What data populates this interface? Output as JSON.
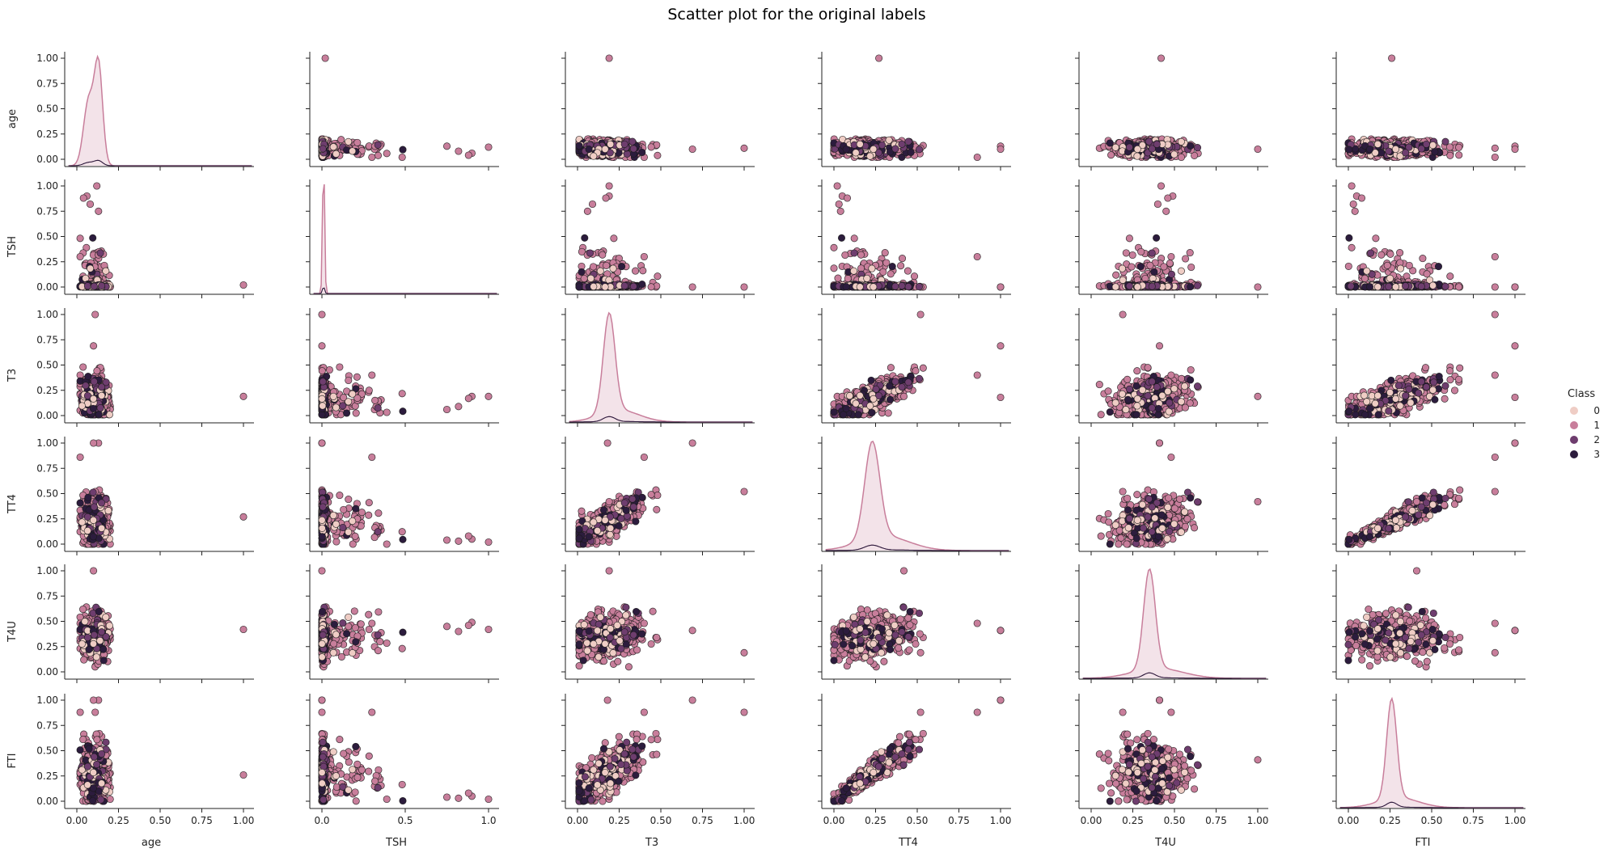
{
  "chart_data": {
    "type": "scatter",
    "title": "Scatter plot for the original labels",
    "variables": [
      "age",
      "TSH",
      "T3",
      "TT4",
      "T4U",
      "FTI"
    ],
    "axis_range": [
      0,
      1
    ],
    "y_ticks": [
      "0.00",
      "0.25",
      "0.50",
      "0.75",
      "1.00"
    ],
    "x_ticks_default": [
      "0.00",
      "0.25",
      "0.50",
      "0.75",
      "1.00"
    ],
    "x_ticks_tsh": [
      "0.0",
      "0.5",
      "1.0"
    ],
    "legend": {
      "title": "Class",
      "position": "right",
      "entries": [
        {
          "label": "0",
          "color": "#EFCDC5"
        },
        {
          "label": "1",
          "color": "#C87E9B"
        },
        {
          "label": "2",
          "color": "#6E3D6E"
        },
        {
          "label": "3",
          "color": "#2C1C3D"
        }
      ]
    },
    "diagonal": {
      "type": "kde",
      "age": {
        "peaks": [
          [
            0.07,
            0.65,
            0.03
          ],
          [
            0.13,
            1.0,
            0.025
          ]
        ]
      },
      "TSH": {
        "peaks": [
          [
            0.01,
            1.0,
            0.006
          ]
        ]
      },
      "T3": {
        "peaks": [
          [
            0.19,
            1.0,
            0.035
          ],
          [
            0.25,
            0.12,
            0.12
          ]
        ]
      },
      "TT4": {
        "peaks": [
          [
            0.23,
            1.0,
            0.045
          ],
          [
            0.3,
            0.15,
            0.15
          ]
        ]
      },
      "T4U": {
        "peaks": [
          [
            0.35,
            1.0,
            0.035
          ],
          [
            0.4,
            0.1,
            0.15
          ]
        ]
      },
      "FTI": {
        "peaks": [
          [
            0.26,
            1.0,
            0.03
          ],
          [
            0.3,
            0.1,
            0.12
          ]
        ]
      }
    },
    "summary": {
      "age": {
        "mean": 0.11,
        "sd": 0.04
      },
      "TSH": {
        "mean": 0.015,
        "sd": 0.03
      },
      "T3": {
        "mean": 0.2,
        "sd": 0.1
      },
      "TT4": {
        "mean": 0.24,
        "sd": 0.1
      },
      "T4U": {
        "mean": 0.36,
        "sd": 0.12
      },
      "FTI": {
        "mean": 0.27,
        "sd": 0.11
      }
    },
    "outliers": [
      {
        "age": 1.0,
        "TSH": 0.02,
        "T3": 0.19,
        "TT4": 0.27,
        "T4U": 0.42,
        "FTI": 0.26
      },
      {
        "age": 0.12,
        "TSH": 1.0,
        "T3": 0.19,
        "TT4": 0.02,
        "T4U": 0.42,
        "FTI": 0.02
      },
      {
        "age": 0.11,
        "TSH": 0.0,
        "T3": 1.0,
        "TT4": 0.52,
        "T4U": 0.19,
        "FTI": 0.88
      },
      {
        "age": 0.13,
        "TSH": 0.0,
        "T3": 0.18,
        "TT4": 1.0,
        "T4U": 0.41,
        "FTI": 1.0
      },
      {
        "age": 0.1,
        "TSH": 0.0,
        "T3": 0.19,
        "TT4": 0.42,
        "T4U": 1.0,
        "FTI": 0.41
      },
      {
        "age": 0.1,
        "TSH": 0.0,
        "T3": 0.69,
        "TT4": 1.0,
        "T4U": 0.41,
        "FTI": 1.0
      },
      {
        "age": 0.06,
        "TSH": 0.9,
        "T3": 0.19,
        "TT4": 0.05,
        "T4U": 0.49,
        "FTI": 0.05
      },
      {
        "age": 0.04,
        "TSH": 0.88,
        "T3": 0.17,
        "TT4": 0.08,
        "T4U": 0.46,
        "FTI": 0.08
      },
      {
        "age": 0.08,
        "TSH": 0.82,
        "T3": 0.09,
        "TT4": 0.03,
        "T4U": 0.4,
        "FTI": 0.03
      },
      {
        "age": 0.13,
        "TSH": 0.75,
        "T3": 0.06,
        "TT4": 0.04,
        "T4U": 0.45,
        "FTI": 0.04
      },
      {
        "age": 0.02,
        "TSH": 0.3,
        "T3": 0.4,
        "TT4": 0.86,
        "T4U": 0.48,
        "FTI": 0.88
      }
    ]
  }
}
